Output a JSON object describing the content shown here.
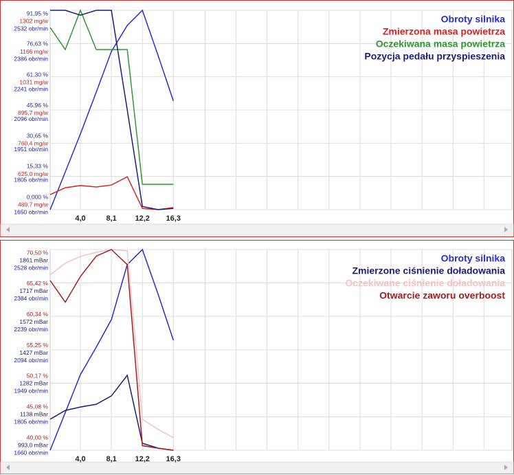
{
  "chart_data": [
    {
      "type": "line",
      "legend": "upper right",
      "grid": true,
      "xlim": [
        0,
        61.1
      ],
      "xticks": [
        {
          "value": 4.0,
          "label": "4,0"
        },
        {
          "value": 8.1,
          "label": "8,1"
        },
        {
          "value": 12.2,
          "label": "12,2"
        },
        {
          "value": 16.3,
          "label": "16,3"
        }
      ],
      "x": [
        0,
        2.0,
        4.0,
        6.1,
        8.1,
        10.2,
        12.2,
        14.3,
        16.3
      ],
      "yaxes": [
        {
          "color": "#2b2b8f",
          "ylim": [
            0,
            91.95
          ],
          "yticks": [
            {
              "value": 0,
              "label": "0,000 %"
            },
            {
              "value": 15.33,
              "label": "15,33 %"
            },
            {
              "value": 30.65,
              "label": "30,65 %"
            },
            {
              "value": 45.96,
              "label": "45,96 %"
            },
            {
              "value": 61.3,
              "label": "61,30 %"
            },
            {
              "value": 76.63,
              "label": "76,63 %"
            },
            {
              "value": 91.95,
              "label": "91,95 %"
            }
          ]
        },
        {
          "color": "#d42020",
          "ylim": [
            489.7,
            1302
          ],
          "yticks": [
            {
              "value": 489.7,
              "label": "489,7 mg/w"
            },
            {
              "value": 625.0,
              "label": "625,0 mg/w"
            },
            {
              "value": 760.4,
              "label": "760,4 mg/w"
            },
            {
              "value": 895.7,
              "label": "895,7 mg/w"
            },
            {
              "value": 1031,
              "label": "1031 mg/w"
            },
            {
              "value": 1166,
              "label": "1166 mg/w"
            },
            {
              "value": 1302,
              "label": "1302 mg/w"
            }
          ]
        },
        {
          "color": "#2020b0",
          "ylim": [
            1650,
            2532
          ],
          "yticks": [
            {
              "value": 1650,
              "label": "1650 obr/min"
            },
            {
              "value": 1805,
              "label": "1805 obr/min"
            },
            {
              "value": 1951,
              "label": "1951 obr/min"
            },
            {
              "value": 2096,
              "label": "2096 obr/min"
            },
            {
              "value": 2241,
              "label": "2241 obr/min"
            },
            {
              "value": 2386,
              "label": "2386 obr/min"
            },
            {
              "value": 2532,
              "label": "2532 obr/min"
            }
          ]
        }
      ],
      "series": [
        {
          "name": "Obroty silnika",
          "color": "#2b2bd0",
          "axis": 2,
          "values": [
            1650,
            1817,
            1985,
            2170,
            2350,
            2465,
            2532,
            2330,
            2131
          ]
        },
        {
          "name": "Zmierzona masa powietrza",
          "color": "#e02020",
          "axis": 1,
          "values": [
            551,
            579,
            588,
            582,
            590,
            624,
            495,
            490,
            498
          ]
        },
        {
          "name": "Oczekiwana masa powietrza",
          "color": "#2e9a2e",
          "axis": 1,
          "values": [
            1232,
            1142,
            1302,
            1142,
            1142,
            1142,
            593,
            593,
            593
          ]
        },
        {
          "name": "Pozycja pedału przyspieszenia",
          "color": "#1c1c78",
          "axis": 0,
          "values": [
            91.95,
            91.95,
            89.7,
            91.95,
            91.95,
            46.0,
            1.5,
            0,
            0.6
          ]
        }
      ]
    },
    {
      "type": "line",
      "legend": "upper right",
      "grid": true,
      "xlim": [
        0,
        61.1
      ],
      "xticks": [
        {
          "value": 4.0,
          "label": "4,0"
        },
        {
          "value": 8.1,
          "label": "8,1"
        },
        {
          "value": 12.2,
          "label": "12,2"
        },
        {
          "value": 16.3,
          "label": "16,3"
        }
      ],
      "x": [
        0,
        2.0,
        4.0,
        6.1,
        8.1,
        10.2,
        12.2,
        14.3,
        16.3
      ],
      "yaxes": [
        {
          "color": "#b02020",
          "ylim": [
            40.0,
            70.5
          ],
          "yticks": [
            {
              "value": 40.0,
              "label": "40,00 %"
            },
            {
              "value": 45.08,
              "label": "45,08 %"
            },
            {
              "value": 50.17,
              "label": "50,17 %"
            },
            {
              "value": 55.25,
              "label": "55,25 %"
            },
            {
              "value": 60.34,
              "label": "60,34 %"
            },
            {
              "value": 65.42,
              "label": "65,42 %"
            },
            {
              "value": 70.5,
              "label": "70,50 %"
            }
          ]
        },
        {
          "color": "#22226e",
          "ylim": [
            993.0,
            1861
          ],
          "yticks": [
            {
              "value": 993.0,
              "label": "993,0 mBar"
            },
            {
              "value": 1138,
              "label": "1138 mBar"
            },
            {
              "value": 1282,
              "label": "1282 mBar"
            },
            {
              "value": 1427,
              "label": "1427 mBar"
            },
            {
              "value": 1572,
              "label": "1572 mBar"
            },
            {
              "value": 1717,
              "label": "1717 mBar"
            },
            {
              "value": 1861,
              "label": "1861 mBar"
            }
          ]
        },
        {
          "color": "#2020b0",
          "ylim": [
            1660,
            2528
          ],
          "yticks": [
            {
              "value": 1660,
              "label": "1660 obr/min"
            },
            {
              "value": 1805,
              "label": "1805 obr/min"
            },
            {
              "value": 1949,
              "label": "1949 obr/min"
            },
            {
              "value": 2094,
              "label": "2094 obr/min"
            },
            {
              "value": 2239,
              "label": "2239 obr/min"
            },
            {
              "value": 2384,
              "label": "2384 obr/min"
            },
            {
              "value": 2528,
              "label": "2528 obr/min"
            }
          ]
        }
      ],
      "series": [
        {
          "name": "Obroty silnika",
          "color": "#2b2bd0",
          "axis": 2,
          "values": [
            1660,
            1823,
            1987,
            2106,
            2225,
            2463,
            2528,
            2333,
            2136
          ]
        },
        {
          "name": "Zmierzone ciśnienie doładowania",
          "color": "#1c1c78",
          "axis": 1,
          "values": [
            1127,
            1165,
            1180,
            1192,
            1228,
            1317,
            1023,
            1002,
            993
          ]
        },
        {
          "name": "Oczekiwane ciśnienie doładowania",
          "color": "#f7c0c8",
          "axis": 1,
          "values": [
            1751,
            1802,
            1831,
            1849,
            1861,
            1855,
            1127,
            1083,
            1047
          ]
        },
        {
          "name": "Otwarcie zaworu overboost",
          "color": "#a51c1c",
          "axis": 0,
          "values": [
            65.8,
            62.5,
            66.4,
            69.5,
            70.5,
            68.2,
            40.7,
            40.3,
            40.0
          ]
        }
      ]
    }
  ]
}
